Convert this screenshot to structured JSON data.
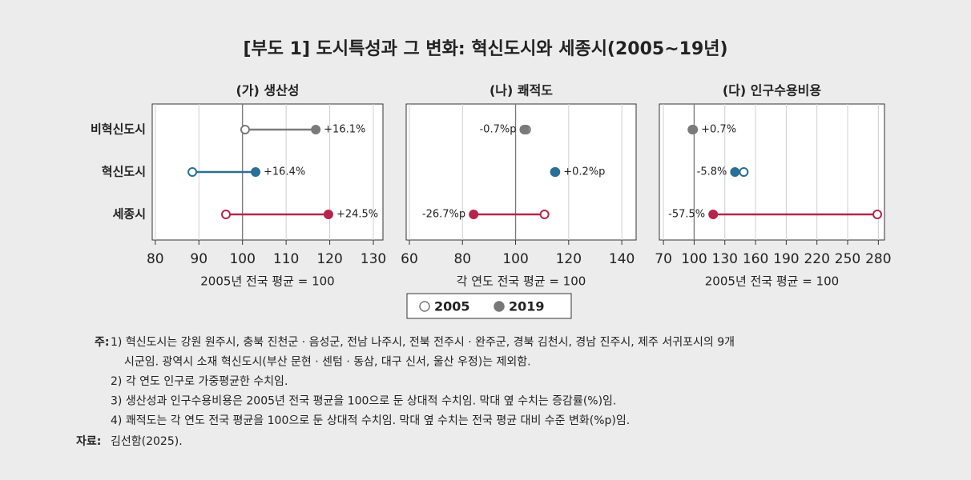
{
  "title": "[부도 1] 도시특성과 그 변화: 혁신도시와 세종시(2005~19년)",
  "chart_data": [
    {
      "type": "dumbbell",
      "title": "(가) 생산성",
      "x_label": "2005년 전국 평균 = 100",
      "categories": [
        "비혁신도시",
        "혁신도시",
        "세종시"
      ],
      "category_colors": [
        "#7a7a7a",
        "#2a6f94",
        "#b3264a"
      ],
      "series": [
        {
          "name": "2005",
          "color": "#777777",
          "marker": "hollow",
          "values": [
            100.6,
            88.5,
            96.2
          ]
        },
        {
          "name": "2019",
          "color": "#777777",
          "marker": "filled",
          "values": [
            116.8,
            103.0,
            119.7
          ]
        }
      ],
      "change_labels": [
        "+16.1%",
        "+16.4%",
        "+24.5%"
      ],
      "reference": 100,
      "xlim": [
        79.3,
        132.2
      ],
      "xticks": [
        80,
        90,
        100,
        110,
        120,
        130
      ],
      "grid": true
    },
    {
      "type": "dumbbell",
      "title": "(나) 쾌적도",
      "x_label": "각 연도 전국 평균 = 100",
      "categories": [
        "비혁신도시",
        "혁신도시",
        "세종시"
      ],
      "category_colors": [
        "#7a7a7a",
        "#2a6f94",
        "#b3264a"
      ],
      "series": [
        {
          "name": "2005",
          "color": "#777777",
          "marker": "hollow",
          "values": [
            104.0,
            114.8,
            110.9
          ]
        },
        {
          "name": "2019",
          "color": "#777777",
          "marker": "filled",
          "values": [
            103.3,
            115.0,
            84.2
          ]
        }
      ],
      "change_labels": [
        "-0.7%p",
        "+0.2%p",
        "-26.7%p"
      ],
      "reference": 100,
      "xlim": [
        58.8,
        145.4
      ],
      "xticks": [
        60,
        80,
        100,
        120,
        140
      ],
      "grid": true
    },
    {
      "type": "dumbbell",
      "title": "(다) 인구수용비용",
      "x_label": "2005년 전국 평균 = 100",
      "categories": [
        "비혁신도시",
        "혁신도시",
        "세종시"
      ],
      "category_colors": [
        "#7a7a7a",
        "#2a6f94",
        "#b3264a"
      ],
      "series": [
        {
          "name": "2005",
          "color": "#777777",
          "marker": "hollow",
          "values": [
            98.3,
            148.5,
            279
          ]
        },
        {
          "name": "2019",
          "color": "#777777",
          "marker": "filled",
          "values": [
            99.0,
            139.9,
            118.6
          ]
        }
      ],
      "change_labels": [
        "+0.7%",
        "-5.8%",
        "-57.5%"
      ],
      "reference": 100,
      "xlim": [
        66,
        286
      ],
      "xticks": [
        70,
        100,
        130,
        160,
        190,
        220,
        250,
        280
      ],
      "grid": true
    }
  ],
  "notes": {
    "label": "주:",
    "lines": [
      "1) 혁신도시는 강원 원주시, 충북 진천군 · 음성군, 전남 나주시, 전북 전주시 · 완주군, 경북 김천시, 경남 진주시, 제주 서귀포시의 9개",
      "시군임. 광역시 소재 혁신도시(부산 문현 · 센텀 · 동삼, 대구 신서, 울산 우정)는 제외함.",
      "2) 각 연도 인구로 가중평균한 수치임.",
      "3) 생산성과 인구수용비용은 2005년 전국 평균을 100으로 둔 상대적 수치임. 막대 옆 수치는 증감률(%)임.",
      "4) 쾌적도는 각 연도 전국 평균을 100으로 둔 상대적 수치임. 막대 옆 수치는 전국 평균 대비 수준 변화(%p)임."
    ]
  },
  "source": {
    "label": "자료:",
    "text": "김선함(2025)."
  }
}
